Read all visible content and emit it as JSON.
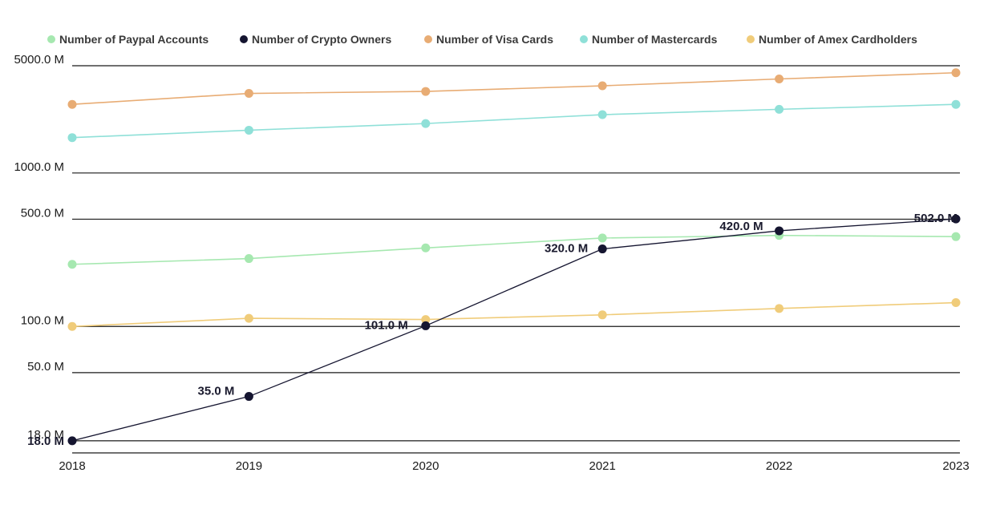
{
  "chart_data": {
    "type": "line",
    "title": "",
    "xlabel": "",
    "ylabel": "",
    "y_scale": "log",
    "grid": "horizontal",
    "legend_position": "top",
    "x": [
      "2018",
      "2019",
      "2020",
      "2021",
      "2022",
      "2023"
    ],
    "y_ticks": [
      {
        "value": 5000,
        "label": "5000.0 M"
      },
      {
        "value": 1000,
        "label": "1000.0 M"
      },
      {
        "value": 500,
        "label": "500.0 M"
      },
      {
        "value": 100,
        "label": "100.0 M"
      },
      {
        "value": 50,
        "label": "50.0 M"
      },
      {
        "value": 18,
        "label": "18.0 M"
      }
    ],
    "series": [
      {
        "name": "Number of Paypal Accounts",
        "color": "#a6e8b0",
        "values": [
          254,
          277,
          325,
          377,
          392,
          385
        ]
      },
      {
        "name": "Number of Crypto Owners",
        "color": "#151530",
        "values": [
          18,
          35,
          101,
          320,
          420,
          502
        ],
        "labels": [
          "18.0 M",
          "35.0 M",
          "101.0 M",
          "320.0 M",
          "420.0 M",
          "502.0 M"
        ]
      },
      {
        "name": "Number of Visa Cards",
        "color": "#e8ac74",
        "values": [
          2800,
          3300,
          3400,
          3700,
          4100,
          4500
        ]
      },
      {
        "name": "Number of Mastercards",
        "color": "#8fe0d8",
        "values": [
          1700,
          1900,
          2100,
          2400,
          2600,
          2800
        ]
      },
      {
        "name": "Number of Amex Cardholders",
        "color": "#f0cc7a",
        "values": [
          100,
          113,
          111,
          119,
          131,
          143
        ]
      }
    ]
  }
}
